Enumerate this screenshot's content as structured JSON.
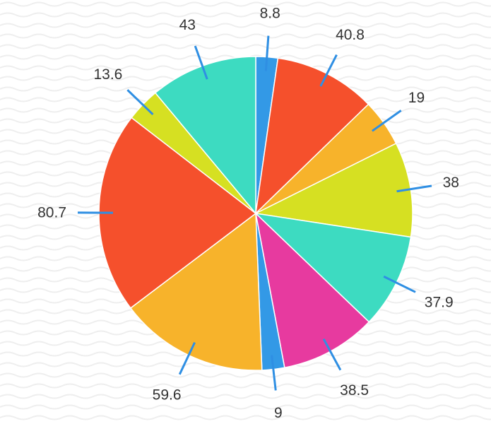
{
  "chart_data": {
    "type": "pie",
    "start_angle_deg": 0,
    "direction": "clockwise",
    "legend": "none",
    "background_pattern": "wavy-lines",
    "slices": [
      {
        "label": "8.8",
        "value": 8.8,
        "color": "#3399e6"
      },
      {
        "label": "40.8",
        "value": 40.8,
        "color": "#f5502c"
      },
      {
        "label": "19",
        "value": 19,
        "color": "#f7b32b"
      },
      {
        "label": "38",
        "value": 38,
        "color": "#d6e022"
      },
      {
        "label": "37.9",
        "value": 37.9,
        "color": "#3ddbc1"
      },
      {
        "label": "38.5",
        "value": 38.5,
        "color": "#e73a9f"
      },
      {
        "label": "9",
        "value": 9,
        "color": "#3399e6"
      },
      {
        "label": "59.6",
        "value": 59.6,
        "color": "#f7b32b"
      },
      {
        "label": "80.7",
        "value": 80.7,
        "color": "#f5502c"
      },
      {
        "label": "13.6",
        "value": 13.6,
        "color": "#d6e022"
      },
      {
        "label": "43",
        "value": 43,
        "color": "#3ddbc1"
      }
    ],
    "leader_line_color": "#2f8fe3",
    "label_color": "#333333"
  }
}
